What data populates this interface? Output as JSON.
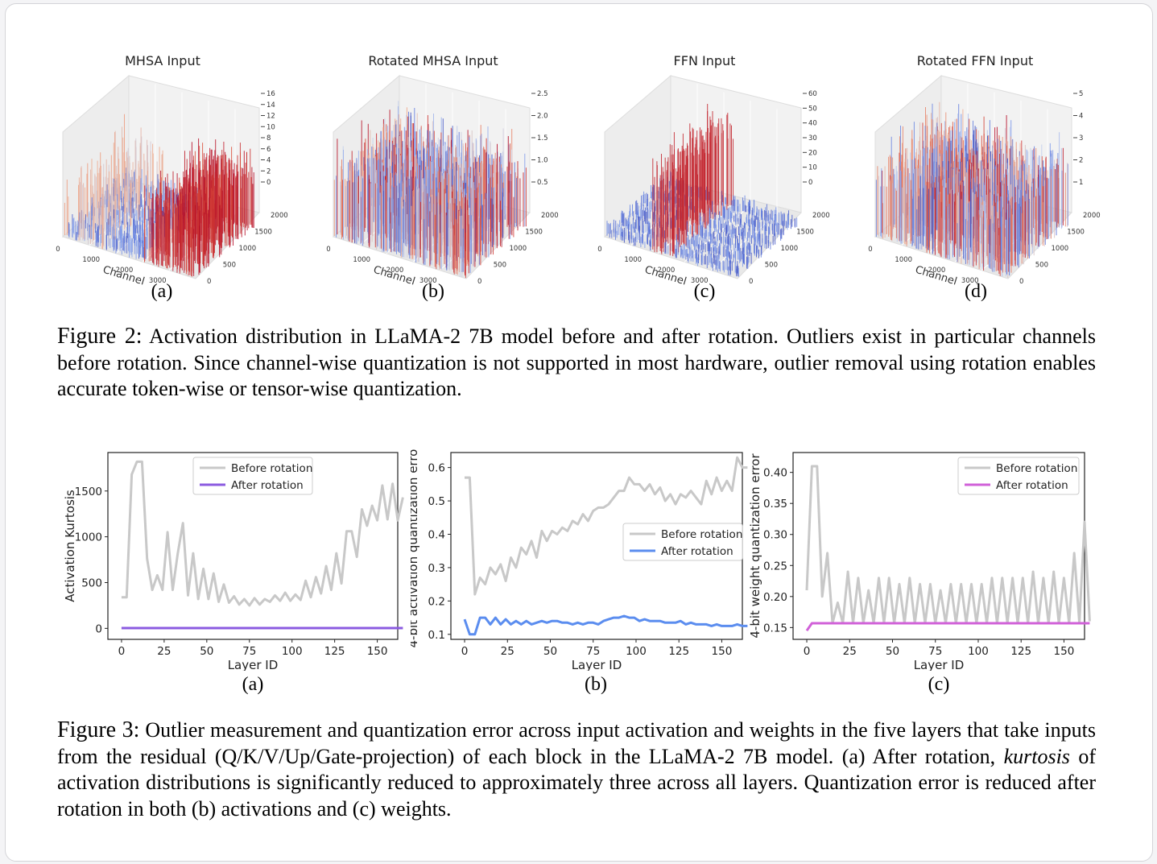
{
  "figure2": {
    "panels": [
      {
        "title": "MHSA Input",
        "sub": "(a)",
        "zticks": [
          "16",
          "14",
          "12",
          "10",
          "8",
          "6",
          "4",
          "2",
          "0"
        ],
        "outlier_channels": [
          3000,
          3200,
          3500
        ],
        "near_channels": [
          0,
          500,
          800,
          1200
        ],
        "palette": "mhsa"
      },
      {
        "title": "Rotated MHSA Input",
        "sub": "(b)",
        "zticks": [
          "2.5",
          "2.0",
          "1.5",
          "1.0",
          "0.5"
        ],
        "outlier_channels": [],
        "near_channels": [],
        "palette": "rot"
      },
      {
        "title": "FFN Input",
        "sub": "(c)",
        "zticks": [
          "60",
          "50",
          "40",
          "30",
          "20",
          "10",
          "0"
        ],
        "outlier_channels": [
          1500,
          1700,
          2000
        ],
        "near_channels": [],
        "palette": "ffn"
      },
      {
        "title": "Rotated FFN Input",
        "sub": "(d)",
        "zticks": [
          "5",
          "4",
          "3",
          "2",
          "1"
        ],
        "outlier_channels": [],
        "near_channels": [],
        "palette": "rot"
      }
    ],
    "channel_ticks": [
      "0",
      "1000",
      "2000",
      "3000",
      "4000"
    ],
    "token_ticks": [
      "2000",
      "1500",
      "1000",
      "500",
      "0"
    ],
    "channel_label": "Channel",
    "caption_label": "Figure 2:",
    "caption_text": "Activation distribution in LLaMA-2 7B model before and after rotation. Outliers exist in particular channels before rotation. Since channel-wise quantization is not supported in most hardware, outlier removal using rotation enables accurate token-wise or tensor-wise quantization."
  },
  "figure3": {
    "caption_label": "Figure 3:",
    "caption_part1": "Outlier measurement and quantization error across input activation and weights in the five layers that take inputs from the residual (Q/K/V/Up/Gate-projection) of each block in the LLaMA-2 7B model. (a) After rotation, ",
    "caption_italic": "kurtosis",
    "caption_part2": " of activation distributions is significantly reduced to approximately three across all layers. Quantization error is reduced after rotation in both (b) activations and (c) weights."
  },
  "chart_data": [
    {
      "type": "line",
      "sub": "(a)",
      "xlabel": "Layer ID",
      "ylabel": "Activation Kurtosis",
      "xlim": [
        -8,
        162
      ],
      "ylim": [
        -120,
        1920
      ],
      "xticks": [
        0,
        25,
        50,
        75,
        100,
        125,
        150
      ],
      "yticks": [
        0,
        500,
        1000,
        1500
      ],
      "ytick_labels": [
        "0",
        "500",
        "1000",
        "1500"
      ],
      "legend": "top-center",
      "series": [
        {
          "name": "Before rotation",
          "color": "#c8c8c8",
          "values": [
            340,
            340,
            1680,
            1820,
            1820,
            760,
            420,
            580,
            420,
            1050,
            420,
            820,
            1150,
            360,
            820,
            320,
            650,
            320,
            600,
            290,
            480,
            280,
            350,
            260,
            320,
            250,
            330,
            260,
            320,
            290,
            360,
            300,
            390,
            300,
            370,
            310,
            520,
            340,
            560,
            380,
            680,
            420,
            820,
            490,
            1060,
            1060,
            780,
            1300,
            1120,
            1340,
            1180,
            1560,
            1190,
            1580,
            1180,
            1430
          ]
        },
        {
          "name": "After rotation",
          "color": "#8b5be0",
          "values": [
            3,
            3,
            3,
            3,
            3,
            3,
            3,
            3,
            3,
            3,
            3,
            3,
            3,
            3,
            3,
            3,
            3,
            3,
            3,
            3,
            3,
            3,
            3,
            3,
            3,
            3,
            3,
            3,
            3,
            3,
            3,
            3,
            3,
            3,
            3,
            3,
            3,
            3,
            3,
            3,
            3,
            3,
            3,
            3,
            3,
            3,
            3,
            3,
            3,
            3,
            3,
            3,
            3,
            3,
            3,
            3
          ]
        }
      ]
    },
    {
      "type": "line",
      "sub": "(b)",
      "xlabel": "Layer ID",
      "ylabel": "4-bit activation quantization error",
      "xlim": [
        -8,
        162
      ],
      "ylim": [
        0.085,
        0.645
      ],
      "xticks": [
        0,
        25,
        50,
        75,
        100,
        125,
        150
      ],
      "yticks": [
        0.1,
        0.2,
        0.3,
        0.4,
        0.5,
        0.6
      ],
      "ytick_labels": [
        "0.1",
        "0.2",
        "0.3",
        "0.4",
        "0.5",
        "0.6"
      ],
      "legend": "center-right",
      "series": [
        {
          "name": "Before rotation",
          "color": "#c8c8c8",
          "values": [
            0.57,
            0.57,
            0.22,
            0.27,
            0.25,
            0.3,
            0.28,
            0.31,
            0.26,
            0.33,
            0.3,
            0.36,
            0.34,
            0.38,
            0.33,
            0.41,
            0.38,
            0.41,
            0.4,
            0.42,
            0.41,
            0.44,
            0.43,
            0.46,
            0.44,
            0.47,
            0.48,
            0.48,
            0.49,
            0.51,
            0.53,
            0.53,
            0.57,
            0.55,
            0.55,
            0.53,
            0.55,
            0.52,
            0.54,
            0.5,
            0.52,
            0.49,
            0.52,
            0.51,
            0.53,
            0.51,
            0.49,
            0.56,
            0.52,
            0.57,
            0.53,
            0.56,
            0.53,
            0.63,
            0.6,
            0.6
          ]
        },
        {
          "name": "After rotation",
          "color": "#5b8def",
          "values": [
            0.145,
            0.1,
            0.1,
            0.15,
            0.15,
            0.13,
            0.15,
            0.13,
            0.145,
            0.13,
            0.14,
            0.13,
            0.14,
            0.13,
            0.135,
            0.14,
            0.135,
            0.14,
            0.14,
            0.135,
            0.135,
            0.13,
            0.135,
            0.13,
            0.135,
            0.135,
            0.13,
            0.14,
            0.145,
            0.15,
            0.15,
            0.155,
            0.15,
            0.15,
            0.14,
            0.145,
            0.14,
            0.14,
            0.14,
            0.135,
            0.135,
            0.135,
            0.14,
            0.13,
            0.135,
            0.13,
            0.13,
            0.13,
            0.125,
            0.13,
            0.125,
            0.125,
            0.125,
            0.13,
            0.125,
            0.125
          ]
        }
      ]
    },
    {
      "type": "line",
      "sub": "(c)",
      "xlabel": "Layer ID",
      "ylabel": "4-bit weight quantization error",
      "xlim": [
        -8,
        162
      ],
      "ylim": [
        0.131,
        0.432
      ],
      "xticks": [
        0,
        25,
        50,
        75,
        100,
        125,
        150
      ],
      "yticks": [
        0.15,
        0.2,
        0.25,
        0.3,
        0.35,
        0.4
      ],
      "ytick_labels": [
        "0.15",
        "0.20",
        "0.25",
        "0.30",
        "0.35",
        "0.40"
      ],
      "legend": "top-right",
      "series": [
        {
          "name": "Before rotation",
          "color": "#c8c8c8",
          "values": [
            0.21,
            0.41,
            0.41,
            0.2,
            0.27,
            0.157,
            0.19,
            0.157,
            0.24,
            0.157,
            0.23,
            0.157,
            0.21,
            0.157,
            0.23,
            0.157,
            0.23,
            0.157,
            0.22,
            0.157,
            0.23,
            0.157,
            0.22,
            0.157,
            0.22,
            0.157,
            0.21,
            0.157,
            0.22,
            0.157,
            0.22,
            0.157,
            0.22,
            0.157,
            0.22,
            0.157,
            0.23,
            0.157,
            0.23,
            0.157,
            0.23,
            0.157,
            0.23,
            0.157,
            0.24,
            0.157,
            0.23,
            0.157,
            0.24,
            0.157,
            0.23,
            0.157,
            0.27,
            0.157,
            0.32,
            0.16
          ]
        },
        {
          "name": "After rotation",
          "color": "#d060d8",
          "values": [
            0.145,
            0.157,
            0.157,
            0.157,
            0.157,
            0.157,
            0.157,
            0.157,
            0.157,
            0.157,
            0.157,
            0.157,
            0.157,
            0.157,
            0.157,
            0.157,
            0.157,
            0.157,
            0.157,
            0.157,
            0.157,
            0.157,
            0.157,
            0.157,
            0.157,
            0.157,
            0.157,
            0.157,
            0.157,
            0.157,
            0.157,
            0.157,
            0.157,
            0.157,
            0.157,
            0.157,
            0.157,
            0.157,
            0.157,
            0.157,
            0.157,
            0.157,
            0.157,
            0.157,
            0.157,
            0.157,
            0.157,
            0.157,
            0.157,
            0.157,
            0.157,
            0.157,
            0.157,
            0.157,
            0.157,
            0.157
          ]
        }
      ]
    }
  ]
}
